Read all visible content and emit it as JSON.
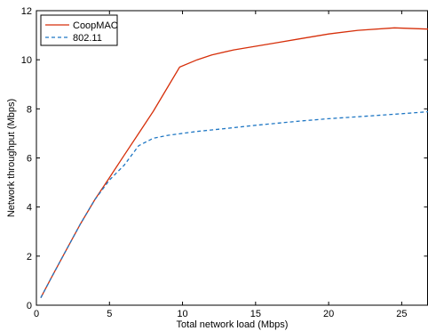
{
  "chart_data": {
    "type": "line",
    "xlabel": "Total network load (Mbps)",
    "ylabel": "Network throughput (Mbps)",
    "xlim": [
      0,
      26.8
    ],
    "ylim": [
      0,
      12
    ],
    "xticks": [
      0,
      5,
      10,
      15,
      20,
      25
    ],
    "yticks": [
      0,
      2,
      4,
      6,
      8,
      10,
      12
    ],
    "grid": false,
    "legend_position": "top-left",
    "series": [
      {
        "name": "CoopMAC",
        "color": "#d62f0a",
        "style": "solid",
        "x": [
          0.3,
          1,
          2,
          3,
          4,
          5,
          6,
          7,
          8,
          9,
          9.8,
          11,
          12,
          13.5,
          15,
          16.5,
          18,
          20,
          22,
          24.5,
          26.8
        ],
        "y": [
          0.3,
          1.1,
          2.2,
          3.3,
          4.3,
          5.2,
          6.1,
          7.0,
          7.9,
          8.9,
          9.7,
          10.0,
          10.2,
          10.4,
          10.55,
          10.7,
          10.85,
          11.05,
          11.2,
          11.3,
          11.25
        ]
      },
      {
        "name": "802.11",
        "color": "#1f77c4",
        "style": "dashed",
        "x": [
          0.3,
          1,
          2,
          3,
          4,
          5,
          5.5,
          6,
          6.5,
          7,
          8,
          9,
          10,
          11,
          12.5,
          15,
          18,
          20,
          22,
          25,
          26.8
        ],
        "y": [
          0.3,
          1.1,
          2.2,
          3.3,
          4.3,
          5.1,
          5.4,
          5.7,
          6.1,
          6.5,
          6.8,
          6.92,
          7.0,
          7.08,
          7.17,
          7.33,
          7.5,
          7.6,
          7.68,
          7.8,
          7.88
        ]
      }
    ]
  }
}
